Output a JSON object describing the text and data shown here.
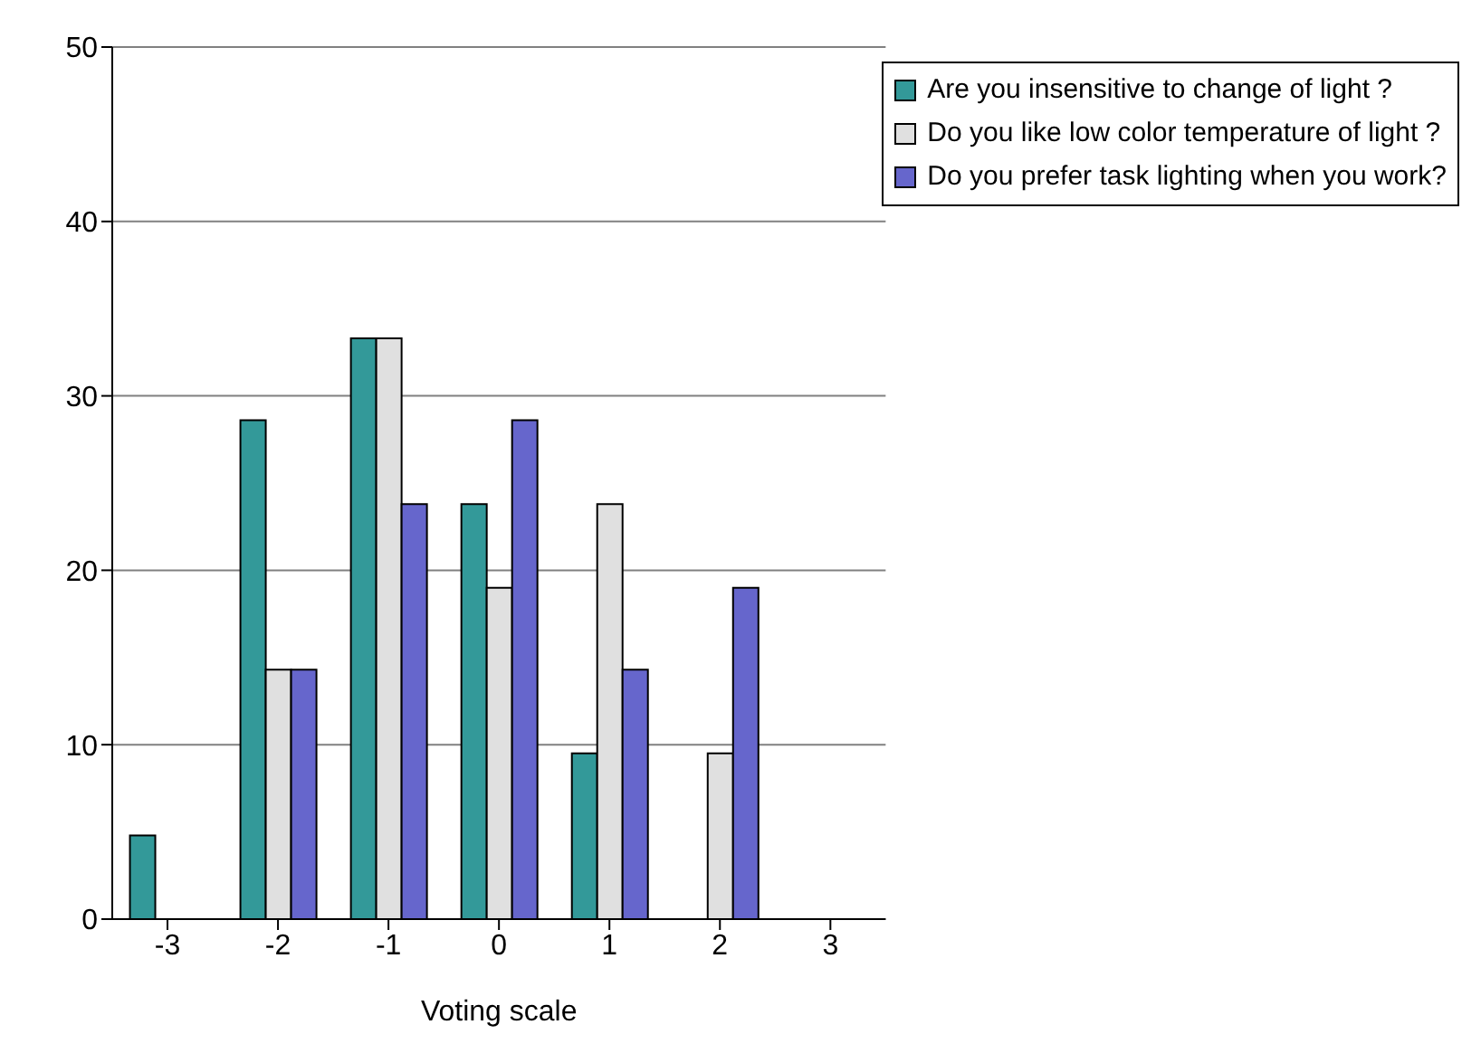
{
  "chart_data": {
    "type": "bar",
    "xlabel": "Voting scale",
    "categories": [
      "-3",
      "-2",
      "-1",
      "0",
      "1",
      "2",
      "3"
    ],
    "series": [
      {
        "name": "Are you insensitive to change of light ?",
        "color": "#339999",
        "values": [
          4.8,
          28.6,
          33.3,
          23.8,
          9.5,
          0,
          0
        ]
      },
      {
        "name": "Do you like low color temperature of light ?",
        "color": "#e0e0e0",
        "values": [
          0,
          14.3,
          33.3,
          19.0,
          23.8,
          9.5,
          0
        ]
      },
      {
        "name": "Do you prefer task lighting when you work?",
        "color": "#6666cc",
        "values": [
          0,
          14.3,
          23.8,
          28.6,
          14.3,
          19.0,
          0
        ]
      }
    ],
    "ylim": [
      0,
      50
    ],
    "yticks": [
      0,
      10,
      20,
      30,
      40,
      50
    ],
    "grid": "y",
    "legend": "top right"
  }
}
